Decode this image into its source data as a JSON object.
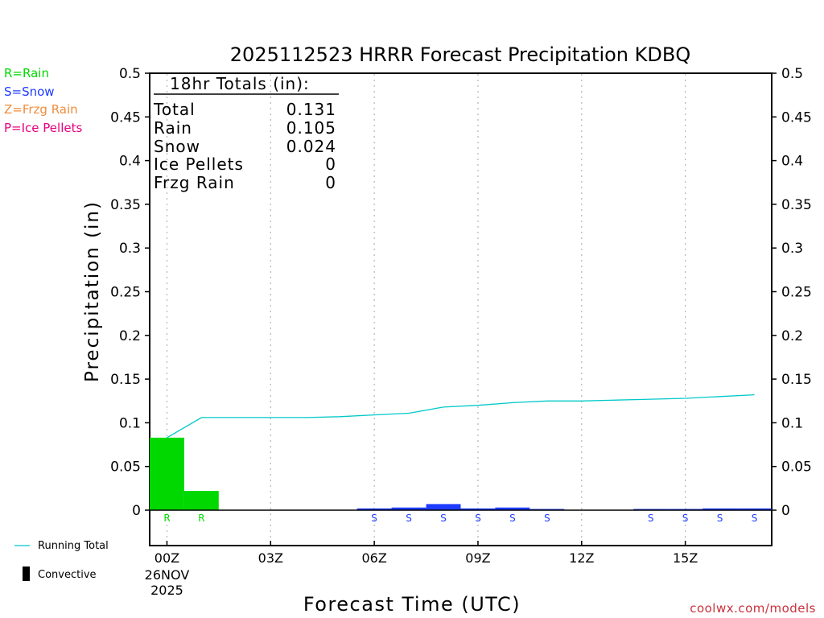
{
  "chart_data": {
    "type": "bar",
    "title": "2025112523 HRRR Forecast Precipitation KDBQ",
    "xlabel": "Forecast Time (UTC)",
    "ylabel": "Precipitation (in)",
    "ylim": [
      -0.04,
      0.5
    ],
    "yticks": [
      0,
      0.05,
      0.1,
      0.15,
      0.2,
      0.25,
      0.3,
      0.35,
      0.4,
      0.45,
      0.5
    ],
    "ytick_labels": [
      "0",
      "0.05",
      "0.1",
      "0.15",
      "0.2",
      "0.25",
      "0.3",
      "0.35",
      "0.4",
      "0.45",
      "0.5"
    ],
    "xlim": [
      -0.5,
      17.5
    ],
    "xticks": [
      {
        "hour": 0,
        "label": "00Z",
        "sublabel1": "26NOV",
        "sublabel2": "2025"
      },
      {
        "hour": 3,
        "label": "03Z"
      },
      {
        "hour": 6,
        "label": "06Z"
      },
      {
        "hour": 9,
        "label": "09Z"
      },
      {
        "hour": 12,
        "label": "12Z"
      },
      {
        "hour": 15,
        "label": "15Z"
      }
    ],
    "grid_vertical": "dotted",
    "series": [
      {
        "name": "Precip",
        "bars": [
          {
            "hour": 0,
            "value": 0.083,
            "type": "R"
          },
          {
            "hour": 1,
            "value": 0.022,
            "type": "R"
          },
          {
            "hour": 2,
            "value": 0.0
          },
          {
            "hour": 3,
            "value": 0.0
          },
          {
            "hour": 4,
            "value": 0.0
          },
          {
            "hour": 5,
            "value": 0.0
          },
          {
            "hour": 6,
            "value": 0.002,
            "type": "S"
          },
          {
            "hour": 7,
            "value": 0.003,
            "type": "S"
          },
          {
            "hour": 8,
            "value": 0.007,
            "type": "S"
          },
          {
            "hour": 9,
            "value": 0.002,
            "type": "S"
          },
          {
            "hour": 10,
            "value": 0.003,
            "type": "S"
          },
          {
            "hour": 11,
            "value": 0.001,
            "type": "S"
          },
          {
            "hour": 12,
            "value": 0.0
          },
          {
            "hour": 13,
            "value": 0.0
          },
          {
            "hour": 14,
            "value": 0.001,
            "type": "S"
          },
          {
            "hour": 15,
            "value": 0.001,
            "type": "S"
          },
          {
            "hour": 16,
            "value": 0.002,
            "type": "S"
          },
          {
            "hour": 17,
            "value": 0.002,
            "type": "S"
          }
        ]
      },
      {
        "name": "Running Total",
        "x": [
          0,
          1,
          2,
          3,
          4,
          5,
          6,
          7,
          8,
          9,
          10,
          11,
          12,
          13,
          14,
          15,
          16,
          17
        ],
        "values": [
          0.083,
          0.106,
          0.106,
          0.106,
          0.106,
          0.107,
          0.109,
          0.111,
          0.118,
          0.12,
          0.123,
          0.125,
          0.125,
          0.126,
          0.127,
          0.128,
          0.13,
          0.132
        ]
      }
    ],
    "totals": {
      "title": "18hr Totals (in):",
      "rows": [
        {
          "label": "Total",
          "value": "0.131"
        },
        {
          "label": "Rain",
          "value": "0.105"
        },
        {
          "label": "Snow",
          "value": "0.024"
        },
        {
          "label": "Ice Pellets",
          "value": "0"
        },
        {
          "label": "Frzg Rain",
          "value": "0"
        }
      ]
    },
    "type_legend": [
      {
        "text": "R=Rain",
        "code": "R",
        "color": "#00d800"
      },
      {
        "text": "S=Snow",
        "code": "S",
        "color": "#1e3cff"
      },
      {
        "text": "Z=Frzg Rain",
        "code": "Z",
        "color": "#f08c3c"
      },
      {
        "text": "P=Ice Pellets",
        "code": "P",
        "color": "#e6007e"
      }
    ],
    "bottom_legend": {
      "running_total": "Running Total",
      "convective": "Convective"
    },
    "colors": {
      "running_total": "#00c8c8",
      "axis": "#000000",
      "grid": "#b4b4b4"
    }
  },
  "credit": "coolwx.com/models"
}
